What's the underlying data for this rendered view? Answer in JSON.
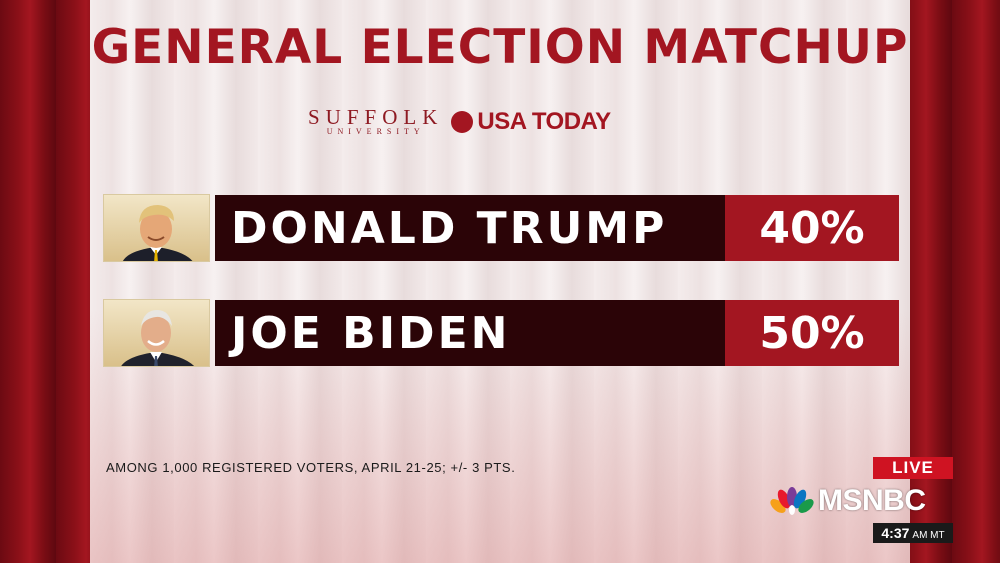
{
  "title": "GENERAL ELECTION MATCHUP",
  "sponsors": {
    "suffolk_main": "SUFFOLK",
    "suffolk_sub": "UNIVERSITY",
    "usa_today": "USA TODAY"
  },
  "candidates": [
    {
      "name": "DONALD TRUMP",
      "percent": "40%",
      "value": 40,
      "photo_icon": "donald-trump-portrait"
    },
    {
      "name": "JOE BIDEN",
      "percent": "50%",
      "value": 50,
      "photo_icon": "joe-biden-portrait"
    }
  ],
  "footnote": "AMONG 1,000 REGISTERED VOTERS, APRIL 21-25; +/- 3 PTS.",
  "broadcast": {
    "live_label": "LIVE",
    "network": "MSNBC",
    "network_icon": "nbc-peacock-icon",
    "time": "4:37",
    "timezone": "AM MT"
  },
  "colors": {
    "accent_red": "#a31621",
    "name_bar": "#2b0407",
    "live_red": "#cf1322"
  }
}
